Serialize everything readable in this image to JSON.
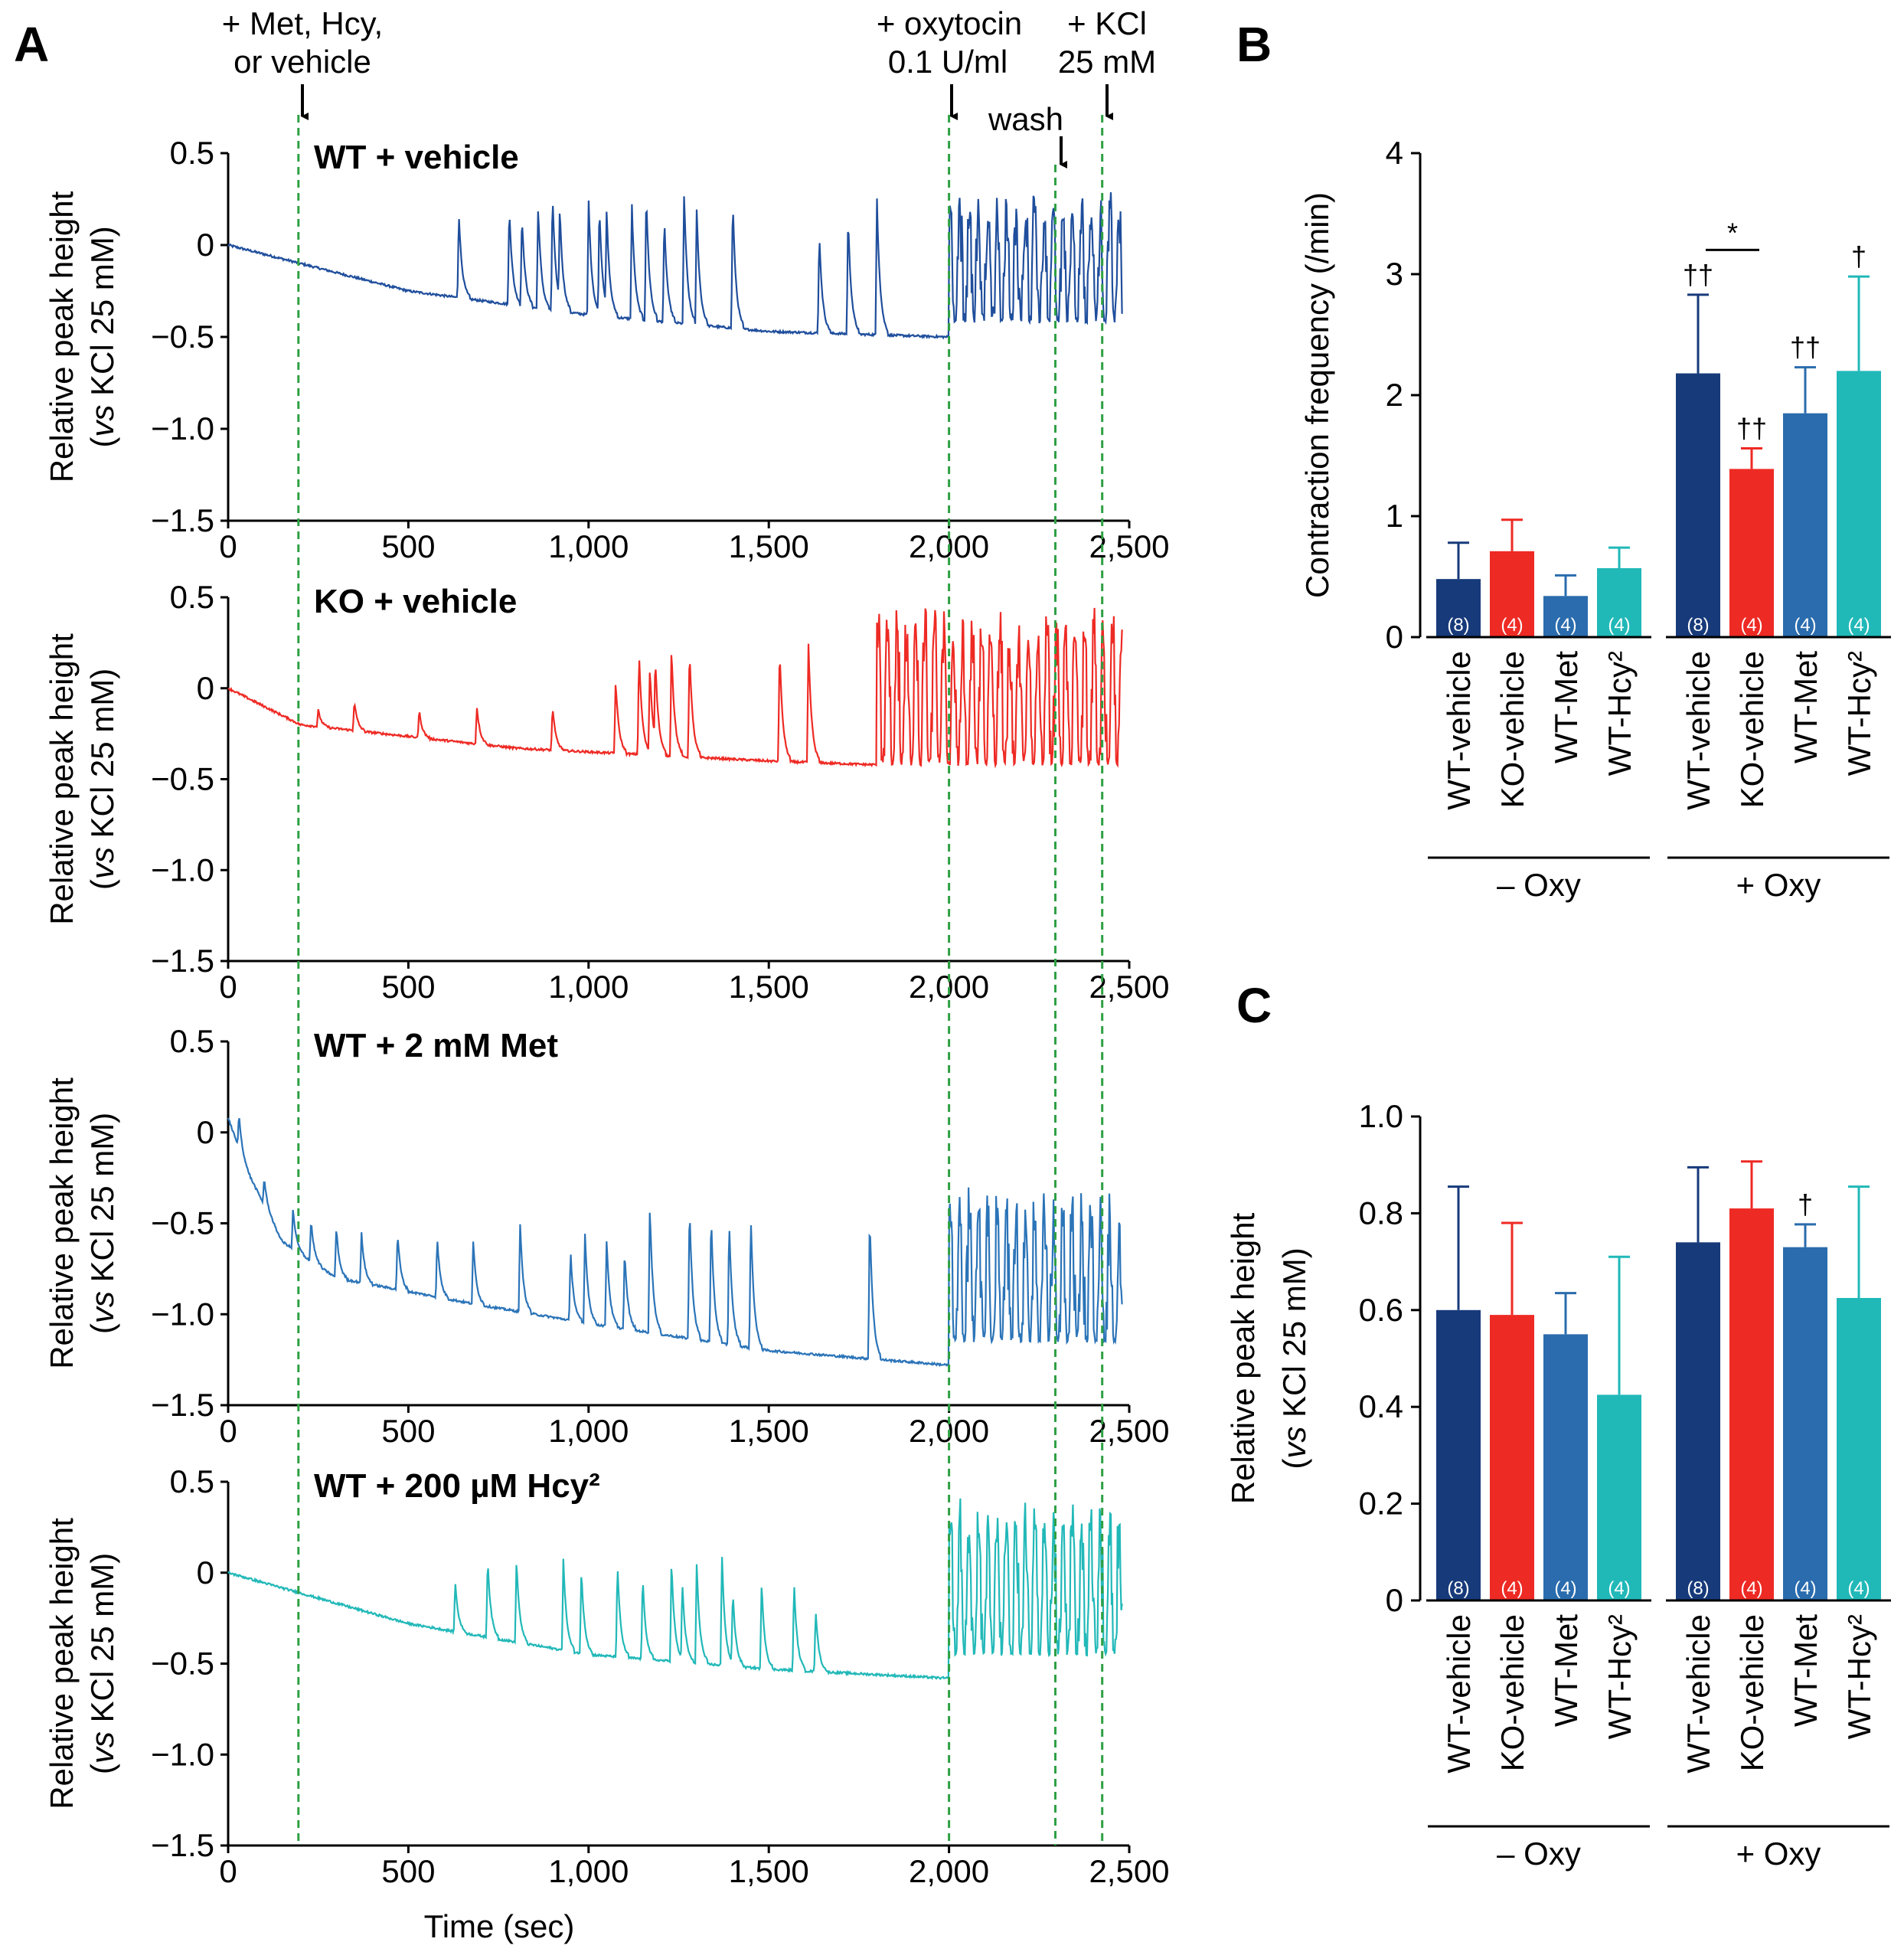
{
  "panel_a": {
    "letter": "A",
    "xlabel": "Time (sec)",
    "ylabel_line1": "Relative peak height",
    "ylabel_line2_italic": "vs",
    "ylabel_line2_rest": " KCl 25 mM)",
    "ylabel_line2_open": "(",
    "annotations": {
      "met": [
        "+ Met, Hcy,",
        "or vehicle"
      ],
      "oxy": [
        "+ oxytocin",
        "0.1 U/ml"
      ],
      "kcl": [
        "+ KCl",
        "25 mM"
      ],
      "wash": "wash"
    },
    "event_times": {
      "treatment": 195,
      "oxytocin": 2000,
      "wash": 2295,
      "kcl": 2425
    },
    "line_color": "#2ea043"
  },
  "panel_b": {
    "letter": "B"
  },
  "panel_c": {
    "letter": "C"
  },
  "chart_data": [
    {
      "type": "line",
      "title": "WT + vehicle",
      "xlabel": "Time (sec)",
      "ylabel": "Relative peak height (vs KCl 25 mM)",
      "xlim": [
        0,
        2500
      ],
      "ylim": [
        -1.5,
        0.5
      ],
      "xticks": [
        0,
        500,
        1000,
        1500,
        2000,
        2500
      ],
      "xtick_labels": [
        "0",
        "500",
        "1,000",
        "1,500",
        "2,000",
        "2,500"
      ],
      "yticks": [
        0.5,
        0,
        -0.5,
        -1.0,
        -1.5
      ],
      "ytick_labels": [
        "0.5",
        "0",
        "−0.5",
        "−1.0",
        "−1.5"
      ],
      "color": "#1f4e9c",
      "x_end": 2480,
      "baseline": [
        [
          0,
          0
        ],
        [
          500,
          -0.25
        ],
        [
          1000,
          -0.38
        ],
        [
          1500,
          -0.47
        ],
        [
          1990,
          -0.5
        ]
      ],
      "spikes": [
        [
          640,
          0.18
        ],
        [
          780,
          0.21
        ],
        [
          815,
          0.17
        ],
        [
          860,
          0.22
        ],
        [
          900,
          0.28
        ],
        [
          920,
          0.22
        ],
        [
          1000,
          0.26
        ],
        [
          1030,
          0.22
        ],
        [
          1050,
          0.2
        ],
        [
          1120,
          0.23
        ],
        [
          1160,
          0.28
        ],
        [
          1210,
          0.15
        ],
        [
          1265,
          0.3
        ],
        [
          1300,
          0.2
        ],
        [
          1400,
          0.25
        ],
        [
          1640,
          0.07
        ],
        [
          1720,
          0.16
        ],
        [
          1800,
          0.26
        ]
      ],
      "phase2": {
        "start": 2000,
        "end": 2480,
        "low": -0.42,
        "high": 0.3
      }
    },
    {
      "type": "line",
      "title": "KO + vehicle",
      "xlabel": "Time (sec)",
      "ylabel": "Relative peak height (vs KCl 25 mM)",
      "xlim": [
        0,
        2500
      ],
      "ylim": [
        -1.5,
        0.5
      ],
      "xticks": [
        0,
        500,
        1000,
        1500,
        2000,
        2500
      ],
      "xtick_labels": [
        "0",
        "500",
        "1,000",
        "1,500",
        "2,000",
        "2,500"
      ],
      "yticks": [
        0.5,
        0,
        -0.5,
        -1.0,
        -1.5
      ],
      "ytick_labels": [
        "0.5",
        "0",
        "−0.5",
        "−1.0",
        "−1.5"
      ],
      "color": "#ee2a24",
      "x_end": 2480,
      "baseline": [
        [
          0,
          0
        ],
        [
          200,
          -0.2
        ],
        [
          800,
          -0.33
        ],
        [
          1100,
          -0.36
        ],
        [
          1500,
          -0.4
        ],
        [
          1780,
          -0.42
        ]
      ],
      "spikes": [
        [
          250,
          -0.12
        ],
        [
          350,
          -0.07
        ],
        [
          530,
          -0.12
        ],
        [
          690,
          -0.1
        ],
        [
          900,
          -0.1
        ],
        [
          1075,
          0.05
        ],
        [
          1140,
          0.2
        ],
        [
          1170,
          0.12
        ],
        [
          1185,
          0.18
        ],
        [
          1230,
          0.23
        ],
        [
          1280,
          0.22
        ],
        [
          1530,
          0.22
        ],
        [
          1610,
          0.25
        ]
      ],
      "phase2": {
        "start": 1800,
        "end": 2480,
        "low": -0.42,
        "high": 0.45
      }
    },
    {
      "type": "line",
      "title": "WT + 2 mM Met",
      "xlabel": "Time (sec)",
      "ylabel": "Relative peak height (vs KCl 25 mM)",
      "xlim": [
        0,
        2500
      ],
      "ylim": [
        -1.5,
        0.5
      ],
      "xticks": [
        0,
        500,
        1000,
        1500,
        2000,
        2500
      ],
      "xtick_labels": [
        "0",
        "500",
        "1,000",
        "1,500",
        "2,000",
        "2,500"
      ],
      "yticks": [
        0.5,
        0,
        -0.5,
        -1.0,
        -1.5
      ],
      "ytick_labels": [
        "0.5",
        "0",
        "−0.5",
        "−1.0",
        "−1.5"
      ],
      "color": "#2b74b8",
      "x_end": 2480,
      "baseline": [
        [
          0,
          0.08
        ],
        [
          50,
          -0.2
        ],
        [
          150,
          -0.6
        ],
        [
          300,
          -0.8
        ],
        [
          700,
          -0.95
        ],
        [
          1000,
          -1.05
        ],
        [
          1500,
          -1.2
        ],
        [
          2000,
          -1.28
        ]
      ],
      "spikes": [
        [
          30,
          0.1
        ],
        [
          100,
          -0.25
        ],
        [
          180,
          -0.42
        ],
        [
          230,
          -0.48
        ],
        [
          300,
          -0.52
        ],
        [
          370,
          -0.55
        ],
        [
          470,
          -0.55
        ],
        [
          580,
          -0.58
        ],
        [
          680,
          -0.6
        ],
        [
          810,
          -0.5
        ],
        [
          950,
          -0.65
        ],
        [
          990,
          -0.55
        ],
        [
          1050,
          -0.58
        ],
        [
          1100,
          -0.65
        ],
        [
          1170,
          -0.4
        ],
        [
          1280,
          -0.4
        ],
        [
          1340,
          -0.45
        ],
        [
          1390,
          -0.48
        ],
        [
          1450,
          -0.45
        ],
        [
          1780,
          -0.45
        ]
      ],
      "phase2": {
        "start": 2000,
        "end": 2480,
        "low": -1.15,
        "high": -0.3
      }
    },
    {
      "type": "line",
      "title": "WT + 200 µM Hcy²",
      "xlabel": "Time (sec)",
      "ylabel": "Relative peak height (vs KCl 25 mM)",
      "xlim": [
        0,
        2500
      ],
      "ylim": [
        -1.5,
        0.5
      ],
      "xticks": [
        0,
        500,
        1000,
        1500,
        2000,
        2500
      ],
      "xtick_labels": [
        "0",
        "500",
        "1,000",
        "1,500",
        "2,000",
        "2,500"
      ],
      "yticks": [
        0.5,
        0,
        -0.5,
        -1.0,
        -1.5
      ],
      "ytick_labels": [
        "0.5",
        "0",
        "−0.5",
        "−1.0",
        "−1.5"
      ],
      "color": "#22b8b8",
      "x_end": 2480,
      "baseline": [
        [
          0,
          0
        ],
        [
          500,
          -0.28
        ],
        [
          1000,
          -0.45
        ],
        [
          1500,
          -0.53
        ],
        [
          1990,
          -0.58
        ]
      ],
      "spikes": [
        [
          630,
          -0.05
        ],
        [
          720,
          0.08
        ],
        [
          800,
          0.07
        ],
        [
          930,
          0.08
        ],
        [
          980,
          0.02
        ],
        [
          1080,
          0.05
        ],
        [
          1150,
          -0.02
        ],
        [
          1230,
          0.07
        ],
        [
          1260,
          -0.05
        ],
        [
          1300,
          0.05
        ],
        [
          1370,
          0.1
        ],
        [
          1400,
          -0.1
        ],
        [
          1480,
          -0.05
        ],
        [
          1570,
          -0.05
        ],
        [
          1630,
          -0.2
        ]
      ],
      "phase2": {
        "start": 2000,
        "end": 2480,
        "low": -0.45,
        "high": 0.42
      }
    },
    {
      "type": "bar",
      "title": "",
      "ylabel": "Contraction frequency (/min)",
      "ylim": [
        0,
        4
      ],
      "yticks": [
        0,
        1,
        2,
        3,
        4
      ],
      "ytick_labels": [
        "0",
        "1",
        "2",
        "3",
        "4"
      ],
      "groups": [
        "– Oxy",
        "+ Oxy"
      ],
      "categories": [
        "WT-vehicle",
        "KO-vehicle",
        "WT-Met",
        "WT-Hcy²"
      ],
      "category_colors": [
        "#173a7a",
        "#ee2a24",
        "#2a6cad",
        "#21b8b8"
      ],
      "series": [
        {
          "name": "– Oxy",
          "values": [
            0.48,
            0.71,
            0.34,
            0.57
          ],
          "errors": [
            0.3,
            0.26,
            0.17,
            0.17
          ],
          "n": [
            "(8)",
            "(4)",
            "(4)",
            "(4)"
          ],
          "markers": [
            "",
            "",
            "",
            ""
          ]
        },
        {
          "name": "+ Oxy",
          "values": [
            2.18,
            1.39,
            1.85,
            2.2
          ],
          "errors": [
            0.65,
            0.17,
            0.38,
            0.78
          ],
          "n": [
            "(8)",
            "(4)",
            "(4)",
            "(4)"
          ],
          "markers": [
            "††",
            "††",
            "††",
            "†"
          ]
        }
      ],
      "significance": [
        {
          "between": [
            "WT-vehicle",
            "KO-vehicle"
          ],
          "group": "+ Oxy",
          "label": "*"
        }
      ]
    },
    {
      "type": "bar",
      "title": "",
      "ylabel": "Relative peak height (vs KCl 25 mM)",
      "ylim": [
        0,
        1.0
      ],
      "yticks": [
        0,
        0.2,
        0.4,
        0.6,
        0.8,
        1.0
      ],
      "ytick_labels": [
        "0",
        "0.2",
        "0.4",
        "0.6",
        "0.8",
        "1.0"
      ],
      "groups": [
        "– Oxy",
        "+ Oxy"
      ],
      "categories": [
        "WT-vehicle",
        "KO-vehicle",
        "WT-Met",
        "WT-Hcy²"
      ],
      "category_colors": [
        "#173a7a",
        "#ee2a24",
        "#2a6cad",
        "#21b8b8"
      ],
      "series": [
        {
          "name": "– Oxy",
          "values": [
            0.6,
            0.59,
            0.55,
            0.425
          ],
          "errors": [
            0.255,
            0.19,
            0.085,
            0.285
          ],
          "n": [
            "(8)",
            "(4)",
            "(4)",
            "(4)"
          ],
          "markers": [
            "",
            "",
            "",
            ""
          ]
        },
        {
          "name": "+ Oxy",
          "values": [
            0.74,
            0.81,
            0.73,
            0.625
          ],
          "errors": [
            0.155,
            0.097,
            0.047,
            0.23
          ],
          "n": [
            "(8)",
            "(4)",
            "(4)",
            "(4)"
          ],
          "markers": [
            "",
            "",
            "†",
            ""
          ]
        }
      ]
    }
  ]
}
